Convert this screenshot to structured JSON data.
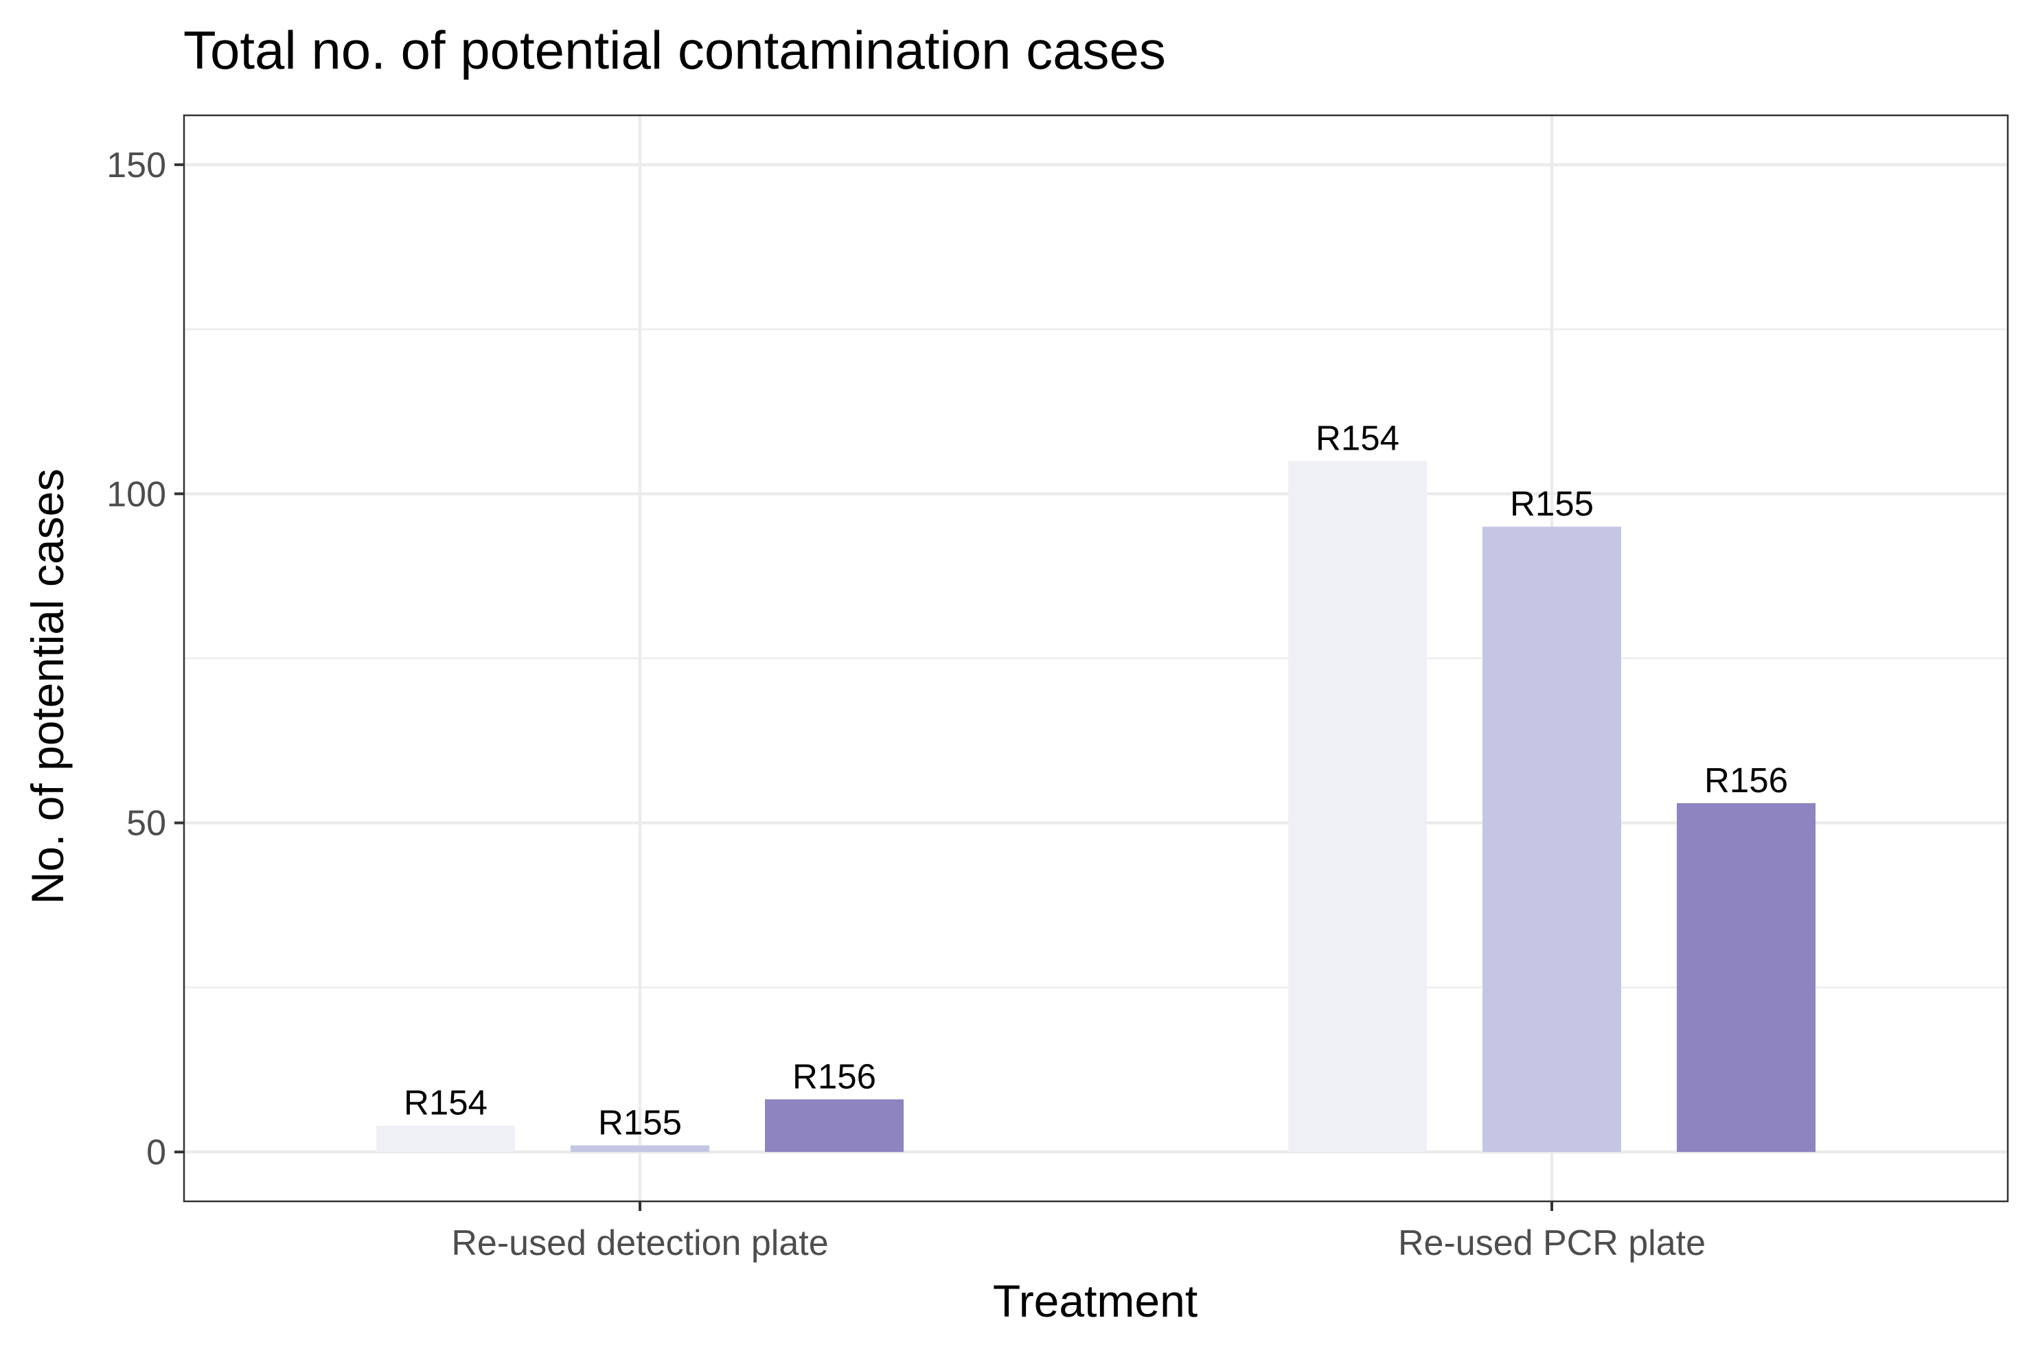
{
  "chart_data": {
    "type": "bar",
    "title": "Total no. of potential contamination cases",
    "xlabel": "Treatment",
    "ylabel": "No. of potential cases",
    "categories": [
      "Re-used detection plate",
      "Re-used PCR plate"
    ],
    "series": [
      {
        "name": "R154",
        "values": [
          4,
          105
        ]
      },
      {
        "name": "R155",
        "values": [
          1,
          95
        ]
      },
      {
        "name": "R156",
        "values": [
          8,
          53
        ]
      }
    ],
    "ylim": [
      -7.5,
      157.5
    ],
    "yticks": [
      0,
      50,
      100,
      150
    ],
    "grid": true,
    "legend": "none",
    "colors": [
      "#efeff6",
      "#c5c6e4",
      "#8e84bf"
    ]
  }
}
